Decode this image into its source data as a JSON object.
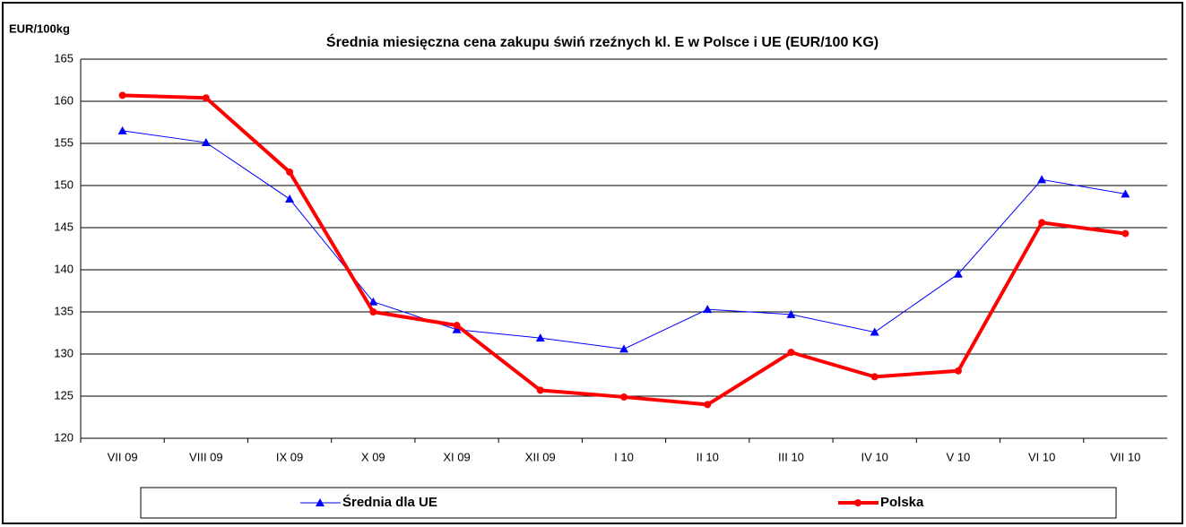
{
  "chart_data": {
    "type": "line",
    "title": "Średnia miesięczna cena zakupu świń rzeźnych kl. E w  Polsce i UE (EUR/100 KG)",
    "y_label": "EUR/100kg",
    "categories": [
      "VII 09",
      "VIII 09",
      "IX 09",
      "X 09",
      "XI 09",
      "XII 09",
      "I 10",
      "II 10",
      "III 10",
      "IV 10",
      "V 10",
      "VI 10",
      "VII 10"
    ],
    "series": [
      {
        "name": "Średnia dla  UE",
        "color": "#0000ff",
        "marker": "triangle",
        "values": [
          156.5,
          155.1,
          148.4,
          136.2,
          132.9,
          131.9,
          130.6,
          135.3,
          134.7,
          132.6,
          139.5,
          150.7,
          149.0
        ]
      },
      {
        "name": "Polska",
        "color": "#ff0000",
        "marker": "circle",
        "values": [
          160.7,
          160.4,
          151.6,
          135.0,
          133.4,
          125.7,
          124.9,
          124.0,
          130.2,
          127.3,
          128.0,
          145.6,
          144.3
        ]
      }
    ],
    "ylim": [
      120,
      165
    ],
    "yticks": [
      120,
      125,
      130,
      135,
      140,
      145,
      150,
      155,
      160,
      165
    ],
    "grid": true,
    "legend": "bottom"
  }
}
